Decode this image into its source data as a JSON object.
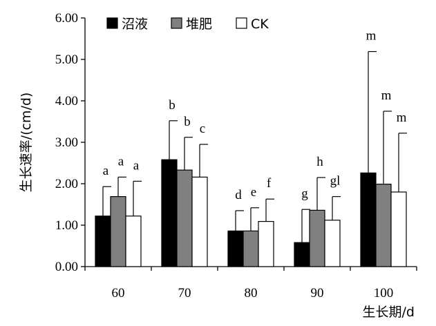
{
  "chart_data": {
    "type": "bar",
    "title": "",
    "xlabel": "生长期/d",
    "ylabel": "生长速率/(cm/d)",
    "ylim": [
      0,
      6
    ],
    "yticks": [
      "0.00",
      "1.00",
      "2.00",
      "3.00",
      "4.00",
      "5.00",
      "6.00"
    ],
    "categories": [
      "60",
      "70",
      "80",
      "90",
      "100"
    ],
    "legend_position": "top-left",
    "grid": false,
    "series": [
      {
        "name": "沼液",
        "color": "#000000",
        "values": [
          1.22,
          2.58,
          0.86,
          0.58,
          2.26
        ],
        "errors": [
          0.71,
          0.94,
          0.49,
          0.8,
          2.93
        ],
        "labels": [
          "a",
          "b",
          "d",
          "g",
          "m"
        ]
      },
      {
        "name": "堆肥",
        "color": "#808080",
        "values": [
          1.69,
          2.33,
          0.86,
          1.36,
          1.99
        ],
        "errors": [
          0.47,
          0.79,
          0.56,
          0.79,
          1.76
        ],
        "labels": [
          "a",
          "b",
          "e",
          "h",
          "m"
        ]
      },
      {
        "name": "CK",
        "color": "#ffffff",
        "values": [
          1.22,
          2.16,
          1.09,
          1.12,
          1.8
        ],
        "errors": [
          0.84,
          0.79,
          0.54,
          0.57,
          1.42
        ],
        "labels": [
          "a",
          "c",
          "f",
          "gl",
          "m"
        ]
      }
    ]
  }
}
